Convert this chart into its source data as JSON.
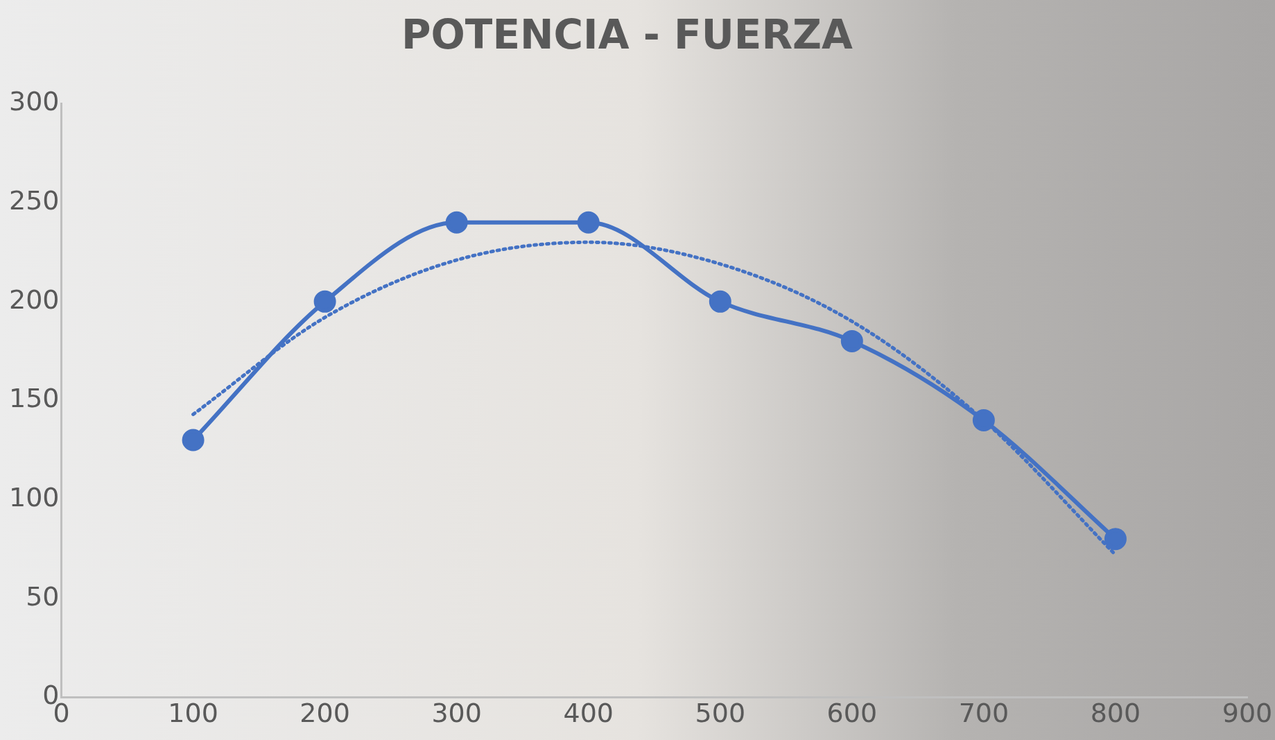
{
  "chart_data": {
    "type": "line",
    "title": "POTENCIA - FUERZA",
    "x": [
      100,
      200,
      300,
      400,
      500,
      600,
      700,
      800
    ],
    "series": [
      {
        "color": "#4472c4",
        "values": [
          130,
          200,
          240,
          240,
          200,
          180,
          140,
          80
        ],
        "marker": "circle",
        "line_style": "solid"
      },
      {
        "type": "line",
        "color": "#4472c4",
        "x": [
          100,
          200,
          300,
          400,
          500,
          600,
          700,
          800
        ],
        "values": [
          143,
          192,
          221,
          230,
          219,
          190,
          140,
          72
        ],
        "marker": "none",
        "line_style": "dotted"
      }
    ],
    "xlim": [
      0,
      900
    ],
    "xticks": [
      0,
      100,
      200,
      300,
      400,
      500,
      600,
      700,
      800,
      900
    ],
    "ylim": [
      0,
      300
    ],
    "yticks": [
      0,
      50,
      100,
      150,
      200,
      250,
      300
    ],
    "grid": false,
    "legend": false
  }
}
